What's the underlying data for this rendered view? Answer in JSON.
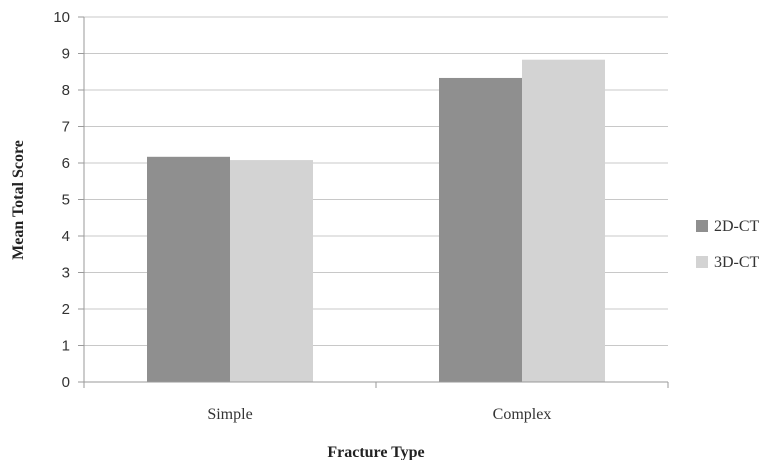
{
  "chart_data": {
    "type": "bar",
    "title": "",
    "xlabel": "Fracture Type",
    "ylabel": "Mean Total Score",
    "categories": [
      "Simple",
      "Complex"
    ],
    "series": [
      {
        "name": "2D-CT",
        "values": [
          6.17,
          8.33
        ],
        "color": "#8f8f8f"
      },
      {
        "name": "3D-CT",
        "values": [
          6.08,
          8.83
        ],
        "color": "#d3d3d3"
      }
    ],
    "ylim": [
      0,
      10
    ],
    "yticks": [
      "0",
      "1",
      "2",
      "3",
      "4",
      "5",
      "6",
      "7",
      "8",
      "9",
      "10"
    ],
    "grid": true,
    "legend_position": "right"
  }
}
